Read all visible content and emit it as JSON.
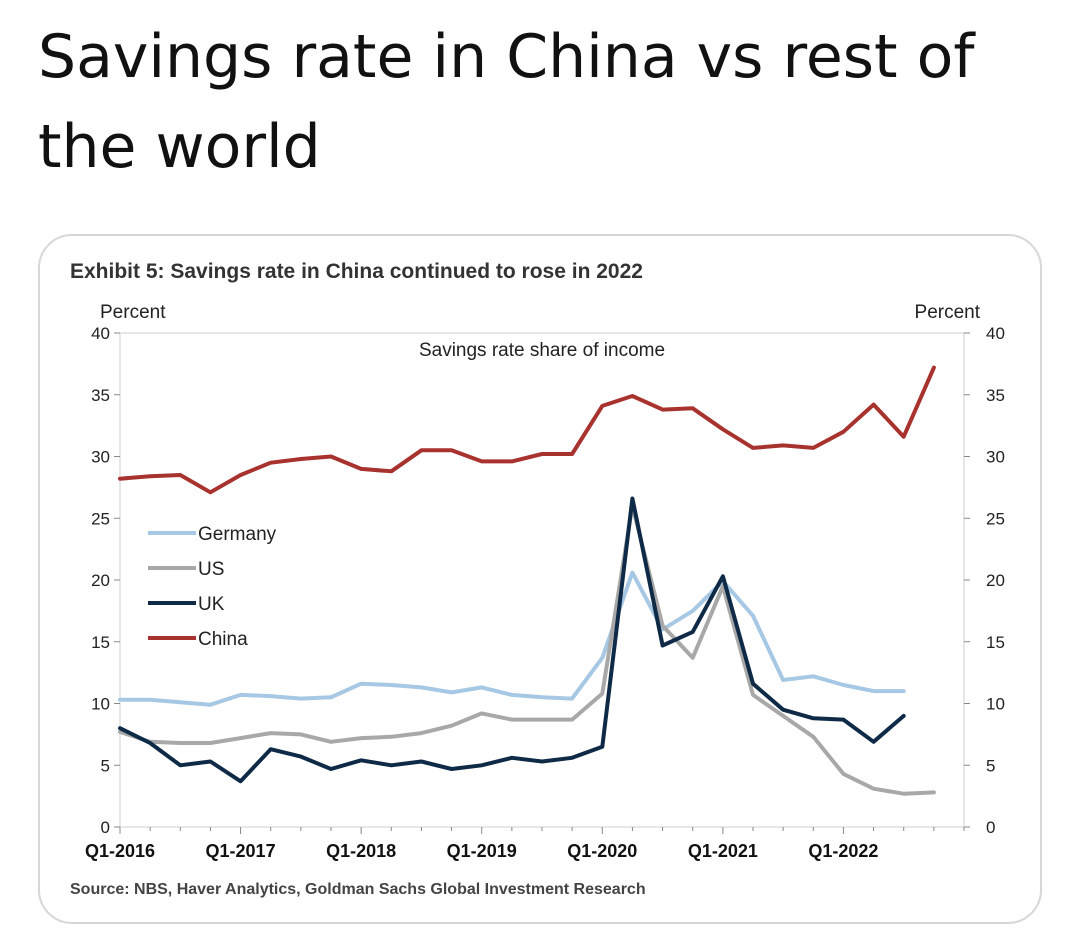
{
  "headline": "Savings rate in China vs rest of the world",
  "chart_data": {
    "type": "line",
    "title": "Exhibit 5: Savings rate in China continued to rose in 2022",
    "subtitle": "Savings rate share of income",
    "ylabel_left": "Percent",
    "ylabel_right": "Percent",
    "ylim": [
      0,
      40
    ],
    "yticks": [
      "0",
      "5",
      "10",
      "15",
      "20",
      "25",
      "30",
      "35",
      "40"
    ],
    "x_tick_labels": [
      "Q1-2016",
      "Q1-2017",
      "Q1-2018",
      "Q1-2019",
      "Q1-2020",
      "Q1-2021",
      "Q1-2022"
    ],
    "x_tick_indices": [
      0,
      4,
      8,
      12,
      16,
      20,
      24
    ],
    "n_quarters": 29,
    "series": [
      {
        "name": "Germany",
        "color": "#a6c8e4",
        "values": [
          10.3,
          10.3,
          10.1,
          9.9,
          10.7,
          10.6,
          10.4,
          10.5,
          11.6,
          11.5,
          11.3,
          10.9,
          11.3,
          10.7,
          10.5,
          10.4,
          13.7,
          20.6,
          16.0,
          17.5,
          19.9,
          17.1,
          11.9,
          12.2,
          11.5,
          11.0,
          11.0
        ]
      },
      {
        "name": "US",
        "color": "#a8a8a8",
        "values": [
          7.7,
          6.9,
          6.8,
          6.8,
          7.2,
          7.6,
          7.5,
          6.9,
          7.2,
          7.3,
          7.6,
          8.2,
          9.2,
          8.7,
          8.7,
          8.7,
          10.8,
          26.0,
          16.3,
          13.7,
          19.5,
          10.7,
          9.0,
          7.3,
          4.3,
          3.1,
          2.7,
          2.8
        ]
      },
      {
        "name": "UK",
        "color": "#0f2a47",
        "values": [
          8.0,
          6.8,
          5.0,
          5.3,
          3.7,
          6.3,
          5.7,
          4.7,
          5.4,
          5.0,
          5.3,
          4.7,
          5.0,
          5.6,
          5.3,
          5.6,
          6.5,
          26.6,
          14.7,
          15.8,
          20.3,
          11.6,
          9.5,
          8.8,
          8.7,
          6.9,
          9.0
        ]
      },
      {
        "name": "China",
        "color": "#a8322d",
        "values": [
          28.2,
          28.4,
          28.5,
          27.1,
          28.5,
          29.5,
          29.8,
          30.0,
          29.0,
          28.8,
          30.5,
          30.5,
          29.6,
          29.6,
          30.2,
          30.2,
          34.1,
          34.9,
          33.8,
          33.9,
          32.2,
          30.7,
          30.9,
          30.7,
          32.0,
          34.2,
          31.6,
          37.2
        ]
      }
    ],
    "legend_position": "left",
    "source": "Source: NBS, Haver Analytics, Goldman Sachs Global Investment Research"
  }
}
